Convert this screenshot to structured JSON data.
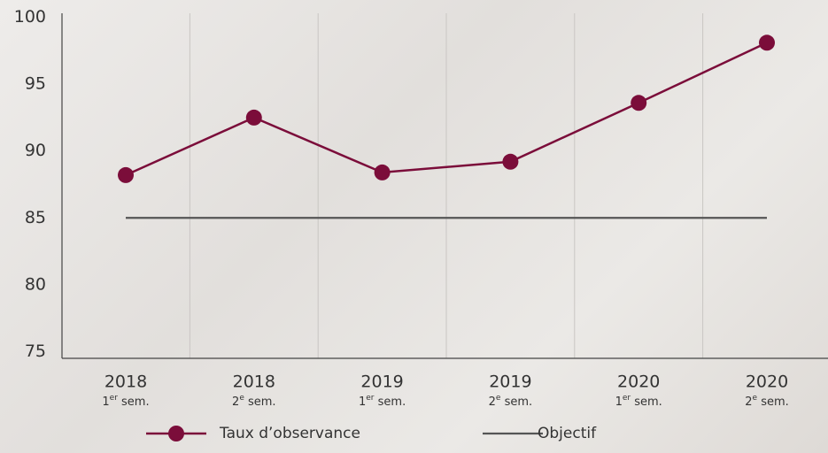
{
  "chart_data": {
    "type": "line",
    "categories": [
      {
        "year": "2018",
        "ordinal": "1",
        "sup": "er",
        "period": " sem."
      },
      {
        "year": "2018",
        "ordinal": "2",
        "sup": "e",
        "period": " sem."
      },
      {
        "year": "2019",
        "ordinal": "1",
        "sup": "er",
        "period": " sem."
      },
      {
        "year": "2019",
        "ordinal": "2",
        "sup": "e",
        "period": " sem."
      },
      {
        "year": "2020",
        "ordinal": "1",
        "sup": "er",
        "period": " sem."
      },
      {
        "year": "2020",
        "ordinal": "2",
        "sup": "e",
        "period": " sem."
      }
    ],
    "series": [
      {
        "name": "Taux d’observance",
        "color": "#7b0d3a",
        "marker": true,
        "values": [
          88.2,
          92.5,
          88.4,
          89.2,
          93.6,
          98.1
        ]
      },
      {
        "name": "Objectif",
        "color": "#555555",
        "marker": false,
        "values": [
          85,
          85,
          85,
          85,
          85,
          85
        ]
      }
    ],
    "ylim": [
      74.5,
      100.3
    ],
    "yticks": [
      75,
      80,
      85,
      90,
      95,
      100
    ],
    "grid": true,
    "legend": "bottom"
  }
}
